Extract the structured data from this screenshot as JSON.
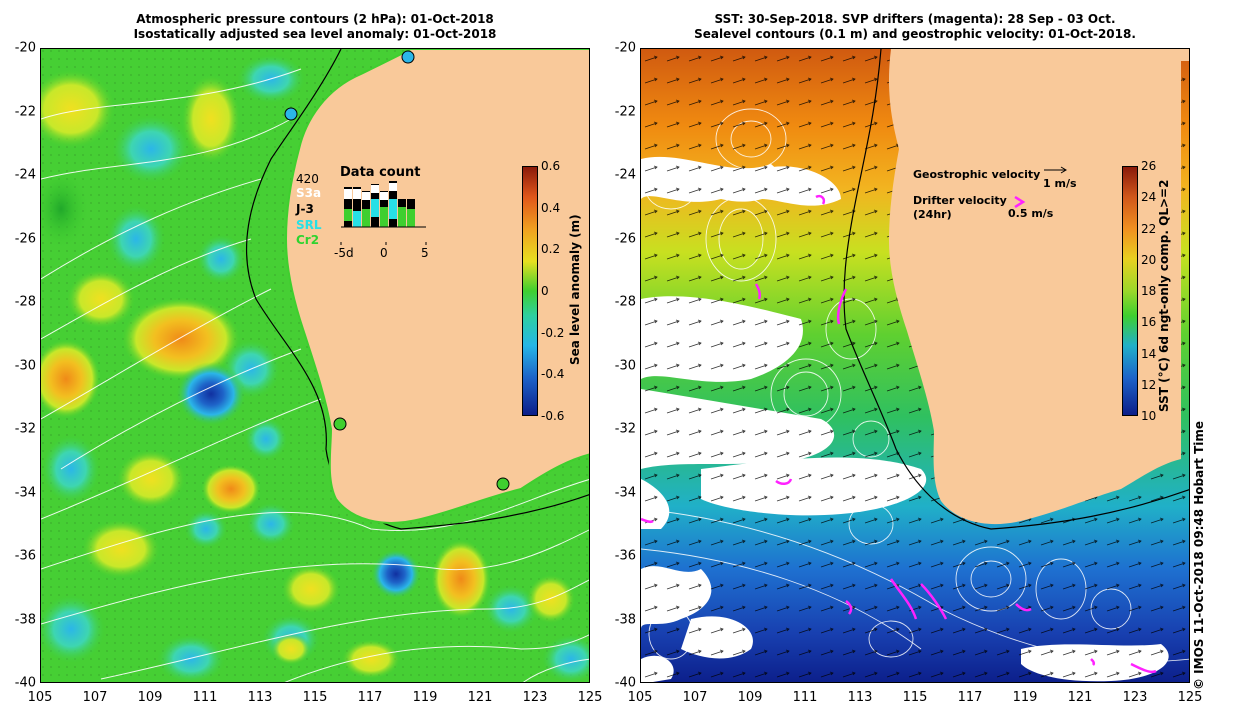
{
  "left_panel": {
    "title_line1": "Atmospheric pressure contours (2 hPa): 01-Oct-2018",
    "title_line2": "Isostatically adjusted sea level anomaly: 01-Oct-2018",
    "colorbar": {
      "title": "Sea level anomaly (m)",
      "ticks": [
        "0.6",
        "0.4",
        "0.2",
        "0",
        "-0.2",
        "-0.4",
        "-0.6"
      ]
    },
    "data_count": {
      "title": "Data count",
      "max_label": "420",
      "satellites": [
        {
          "name": "S3a",
          "color": "#ffffff"
        },
        {
          "name": "J-3",
          "color": "#000000"
        },
        {
          "name": "SRL",
          "color": "#27e0e6"
        },
        {
          "name": "Cr2",
          "color": "#2fd32f"
        }
      ],
      "axis_ticks": [
        "-5d",
        "0",
        "5"
      ]
    }
  },
  "right_panel": {
    "title_line1": "SST: 30-Sep-2018. SVP drifters (magenta): 28 Sep - 03 Oct.",
    "title_line2": "Sealevel contours (0.1 m) and geostrophic velocity: 01-Oct-2018.",
    "colorbar": {
      "title": "SST (°C) 6d ngt-only comp. QL>=2",
      "ticks": [
        "26",
        "24",
        "22",
        "20",
        "18",
        "16",
        "14",
        "12",
        "10"
      ]
    },
    "legend": {
      "geostrophic_label": "Geostrophic velocity",
      "geostrophic_scale": "1 m/s",
      "drifter_label": "Drifter velocity",
      "drifter_sub": "(24hr)",
      "drifter_scale": "0.5 m/s"
    }
  },
  "axes": {
    "y_ticks": [
      "-20",
      "-22",
      "-24",
      "-26",
      "-28",
      "-30",
      "-32",
      "-34",
      "-36",
      "-38",
      "-40"
    ],
    "x_ticks": [
      "105",
      "107",
      "109",
      "111",
      "113",
      "115",
      "117",
      "119",
      "121",
      "123",
      "125"
    ]
  },
  "credit": "© IMOS 11-Oct-2018 09:48 Hobart Time",
  "colors": {
    "land": "#f9c99a",
    "sla_green": "#3fcf2f",
    "sla_yellow": "#d8e82a",
    "sla_orange": "#f2a020",
    "sla_blue": "#1e63c8",
    "drifter": "#ff22ff"
  }
}
